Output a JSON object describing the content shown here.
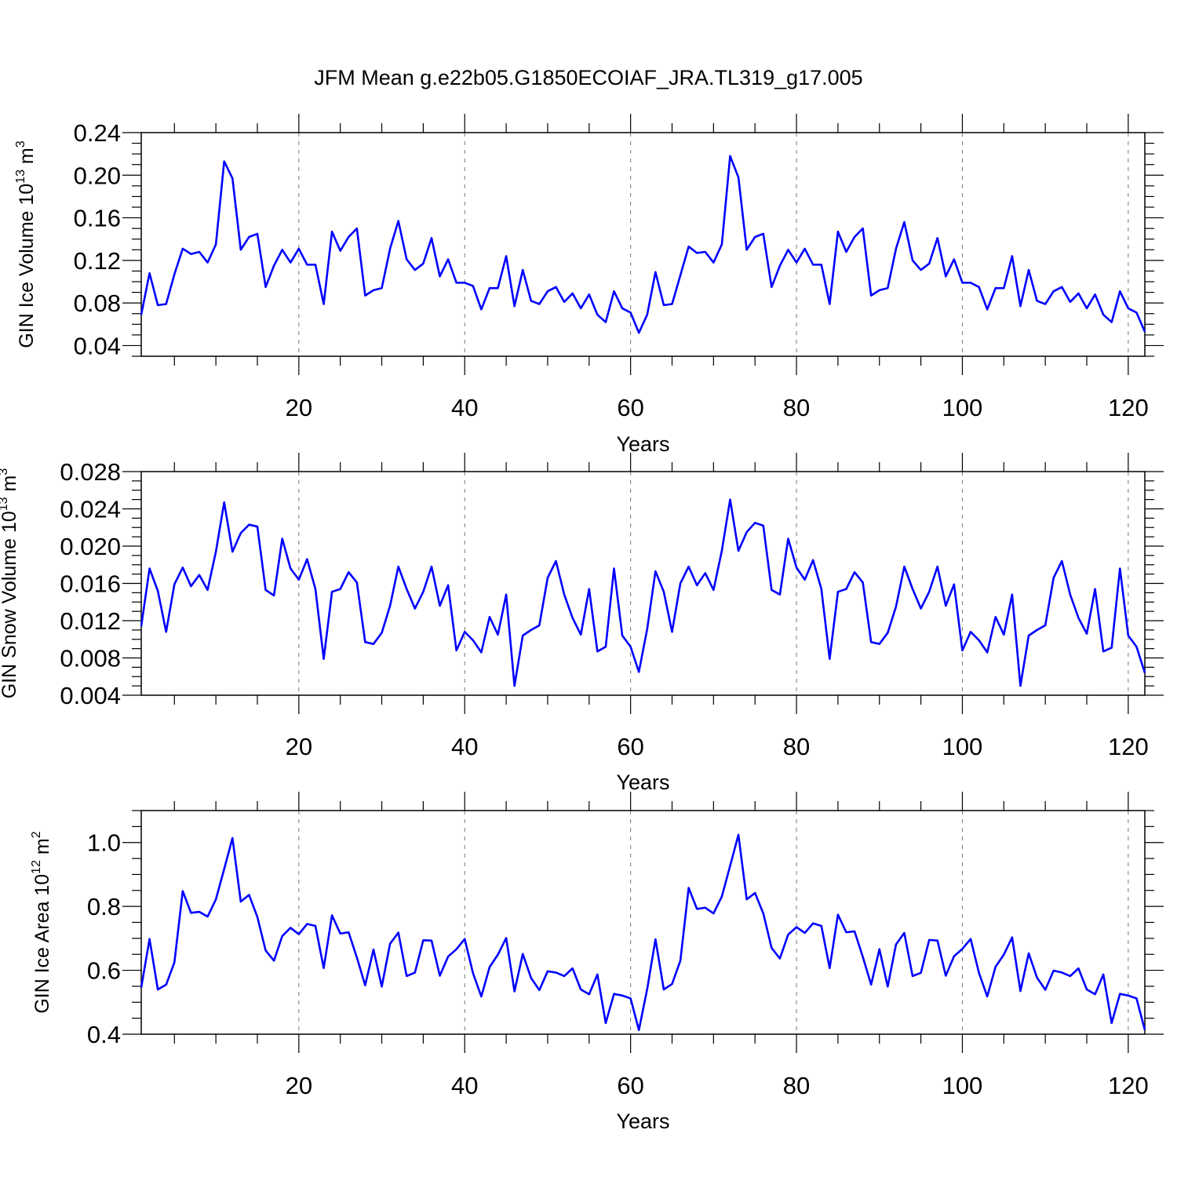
{
  "title": "JFM Mean g.e22b05.G1850ECOIAF_JRA.TL319_g17.005",
  "chart_data": [
    {
      "type": "line",
      "ylabel": "GIN Ice Volume 10",
      "ylabel_exp": "13",
      "ylabel_unit": " m",
      "ylabel_unit_exp": "3",
      "xlabel": "Years",
      "xlim": [
        1,
        122
      ],
      "ylim": [
        0.03,
        0.24
      ],
      "xticks": [
        20,
        40,
        60,
        80,
        100,
        120
      ],
      "yticks": [
        0.04,
        0.08,
        0.12,
        0.16,
        0.2,
        0.24
      ],
      "ytick_labels": [
        "0.04",
        "0.08",
        "0.12",
        "0.16",
        "0.20",
        "0.24"
      ],
      "line_color": "#0000ff",
      "grid": "vertical dashed at major x ticks",
      "x_start": 1,
      "values": [
        0.069,
        0.108,
        0.078,
        0.079,
        0.107,
        0.131,
        0.126,
        0.128,
        0.118,
        0.135,
        0.213,
        0.197,
        0.13,
        0.142,
        0.145,
        0.095,
        0.115,
        0.13,
        0.118,
        0.131,
        0.116,
        0.116,
        0.079,
        0.147,
        0.129,
        0.142,
        0.15,
        0.087,
        0.092,
        0.094,
        0.131,
        0.157,
        0.121,
        0.111,
        0.117,
        0.141,
        0.105,
        0.121,
        0.099,
        0.099,
        0.096,
        0.074,
        0.094,
        0.094,
        0.124,
        0.077,
        0.111,
        0.082,
        0.079,
        0.091,
        0.095,
        0.081,
        0.089,
        0.075,
        0.088,
        0.069,
        0.062,
        0.091,
        0.075,
        0.071,
        0.052,
        0.069,
        0.109,
        0.078,
        0.079,
        0.106,
        0.133,
        0.127,
        0.128,
        0.118,
        0.135,
        0.218,
        0.198,
        0.13,
        0.142,
        0.145,
        0.095,
        0.115,
        0.13,
        0.118,
        0.131,
        0.116,
        0.116,
        0.079,
        0.147,
        0.128,
        0.142,
        0.15,
        0.087,
        0.092,
        0.094,
        0.131,
        0.156,
        0.12,
        0.111,
        0.117,
        0.141,
        0.105,
        0.121,
        0.099,
        0.099,
        0.095,
        0.074,
        0.094,
        0.094,
        0.124,
        0.077,
        0.111,
        0.082,
        0.079,
        0.091,
        0.095,
        0.081,
        0.089,
        0.075,
        0.088,
        0.069,
        0.062,
        0.091,
        0.075,
        0.071,
        0.053
      ]
    },
    {
      "type": "line",
      "ylabel": "GIN Snow Volume 10",
      "ylabel_exp": "13",
      "ylabel_unit": " m",
      "ylabel_unit_exp": "3",
      "xlabel": "Years",
      "xlim": [
        1,
        122
      ],
      "ylim": [
        0.004,
        0.028
      ],
      "xticks": [
        20,
        40,
        60,
        80,
        100,
        120
      ],
      "yticks": [
        0.004,
        0.008,
        0.012,
        0.016,
        0.02,
        0.024,
        0.028
      ],
      "ytick_labels": [
        "0.004",
        "0.008",
        "0.012",
        "0.016",
        "0.020",
        "0.024",
        "0.028"
      ],
      "line_color": "#0000ff",
      "grid": "vertical dashed at major x ticks",
      "x_start": 1,
      "values": [
        0.0114,
        0.0176,
        0.0152,
        0.0108,
        0.0159,
        0.0177,
        0.0157,
        0.0169,
        0.0153,
        0.0194,
        0.0247,
        0.0194,
        0.0214,
        0.0223,
        0.0221,
        0.0153,
        0.0147,
        0.0208,
        0.0176,
        0.0164,
        0.0186,
        0.0154,
        0.0079,
        0.0151,
        0.0154,
        0.0172,
        0.0161,
        0.0097,
        0.0095,
        0.0107,
        0.0136,
        0.0178,
        0.0154,
        0.0133,
        0.0151,
        0.0178,
        0.0136,
        0.0158,
        0.0088,
        0.0108,
        0.0099,
        0.0086,
        0.0124,
        0.0105,
        0.0148,
        0.005,
        0.0104,
        0.011,
        0.0115,
        0.0166,
        0.0184,
        0.0148,
        0.0123,
        0.0105,
        0.0154,
        0.0087,
        0.0092,
        0.0176,
        0.0104,
        0.0092,
        0.0065,
        0.0111,
        0.0173,
        0.0151,
        0.0108,
        0.016,
        0.0178,
        0.0158,
        0.0171,
        0.0153,
        0.0195,
        0.025,
        0.0195,
        0.0215,
        0.0225,
        0.0222,
        0.0153,
        0.0148,
        0.0208,
        0.0177,
        0.0164,
        0.0185,
        0.0154,
        0.0079,
        0.0151,
        0.0154,
        0.0172,
        0.0161,
        0.0097,
        0.0095,
        0.0107,
        0.0135,
        0.0178,
        0.0154,
        0.0133,
        0.0151,
        0.0178,
        0.0136,
        0.0159,
        0.0088,
        0.0108,
        0.0099,
        0.0086,
        0.0124,
        0.0105,
        0.0148,
        0.005,
        0.0104,
        0.011,
        0.0115,
        0.0166,
        0.0184,
        0.0148,
        0.0123,
        0.0106,
        0.0154,
        0.0087,
        0.0091,
        0.0176,
        0.0104,
        0.0092,
        0.0064
      ]
    },
    {
      "type": "line",
      "ylabel": "GIN Ice Area 10",
      "ylabel_exp": "12",
      "ylabel_unit": " m",
      "ylabel_unit_exp": "2",
      "xlabel": "Years",
      "xlim": [
        1,
        122
      ],
      "ylim": [
        0.4,
        1.1
      ],
      "xticks": [
        20,
        40,
        60,
        80,
        100,
        120
      ],
      "yticks": [
        0.4,
        0.6,
        0.8,
        1.0
      ],
      "ytick_labels": [
        "0.4",
        "0.6",
        "0.8",
        "1.0"
      ],
      "line_color": "#0000ff",
      "grid": "vertical dashed at major x ticks",
      "x_start": 1,
      "values": [
        0.546,
        0.698,
        0.54,
        0.555,
        0.625,
        0.848,
        0.78,
        0.783,
        0.768,
        0.822,
        0.917,
        1.014,
        0.815,
        0.836,
        0.767,
        0.662,
        0.63,
        0.707,
        0.733,
        0.713,
        0.745,
        0.739,
        0.607,
        0.772,
        0.715,
        0.719,
        0.64,
        0.553,
        0.665,
        0.549,
        0.683,
        0.718,
        0.582,
        0.593,
        0.694,
        0.693,
        0.583,
        0.643,
        0.666,
        0.698,
        0.591,
        0.518,
        0.61,
        0.649,
        0.701,
        0.534,
        0.651,
        0.576,
        0.538,
        0.597,
        0.593,
        0.582,
        0.606,
        0.54,
        0.525,
        0.587,
        0.435,
        0.526,
        0.521,
        0.512,
        0.413,
        0.541,
        0.697,
        0.54,
        0.557,
        0.63,
        0.858,
        0.792,
        0.796,
        0.778,
        0.831,
        0.927,
        1.024,
        0.822,
        0.842,
        0.778,
        0.67,
        0.637,
        0.712,
        0.735,
        0.717,
        0.747,
        0.739,
        0.607,
        0.774,
        0.719,
        0.722,
        0.642,
        0.555,
        0.666,
        0.549,
        0.681,
        0.717,
        0.582,
        0.592,
        0.695,
        0.693,
        0.583,
        0.644,
        0.667,
        0.698,
        0.592,
        0.518,
        0.611,
        0.649,
        0.703,
        0.535,
        0.653,
        0.577,
        0.539,
        0.599,
        0.593,
        0.582,
        0.606,
        0.54,
        0.525,
        0.587,
        0.435,
        0.526,
        0.521,
        0.512,
        0.413
      ]
    }
  ]
}
